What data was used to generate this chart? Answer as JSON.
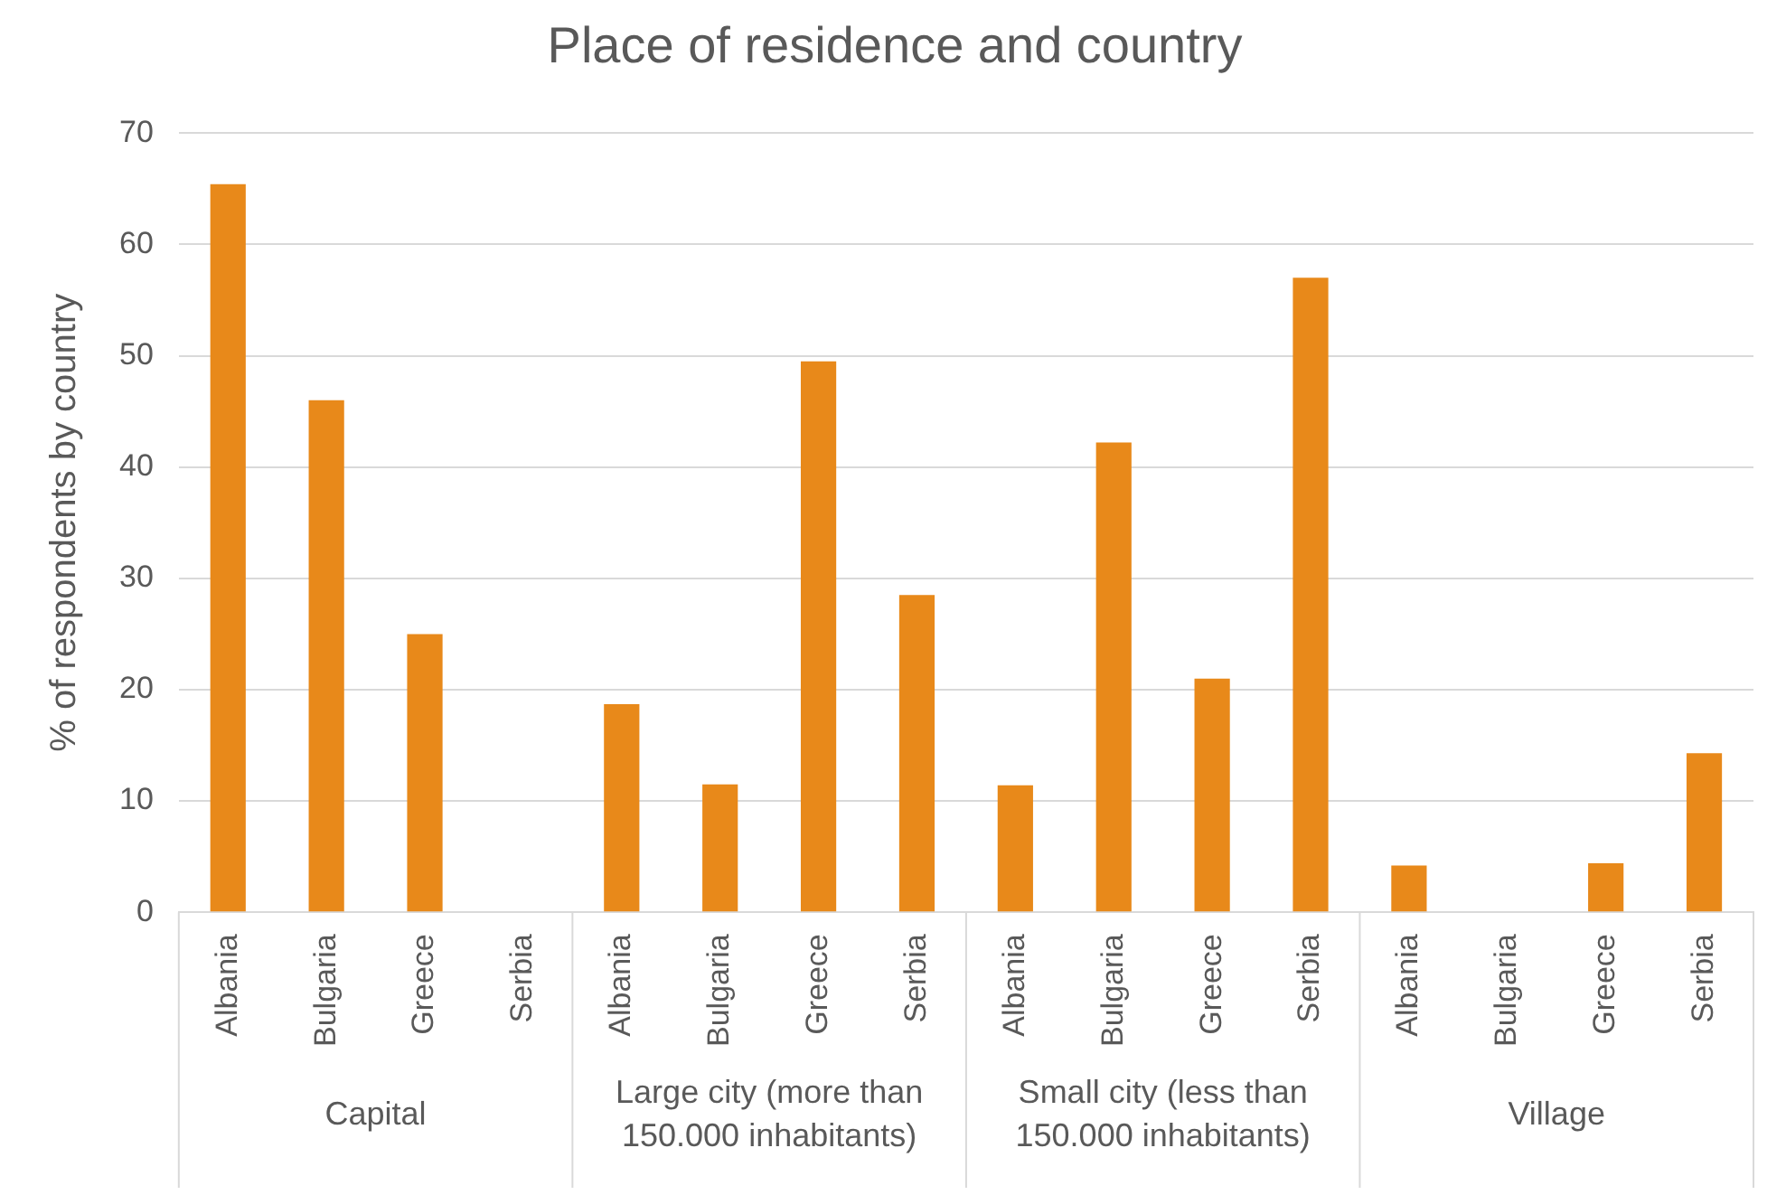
{
  "chart_data": {
    "type": "bar",
    "title": "Place of residence and country",
    "ylabel": "% of respondents by country",
    "categories": [
      "Albania",
      "Bulgaria",
      "Greece",
      "Serbia",
      "Albania",
      "Bulgaria",
      "Greece",
      "Serbia",
      "Albania",
      "Bulgaria",
      "Greece",
      "Serbia",
      "Albania",
      "Bulgaria",
      "Greece",
      "Serbia"
    ],
    "values": [
      65.4,
      46,
      25,
      0,
      18.7,
      11.5,
      49.5,
      28.5,
      11.4,
      42.2,
      21,
      57,
      4.2,
      0,
      4.4,
      14.3
    ],
    "color": "#e8891a",
    "ylim": [
      0,
      70
    ],
    "yticks": [
      0,
      10,
      20,
      30,
      40,
      50,
      60,
      70
    ],
    "grid": "y",
    "annotations": [
      "Capital",
      "Large city (more than 150.000 inhabitants)",
      "Small city (less than 150.000 inhabitants)",
      "Village"
    ]
  }
}
